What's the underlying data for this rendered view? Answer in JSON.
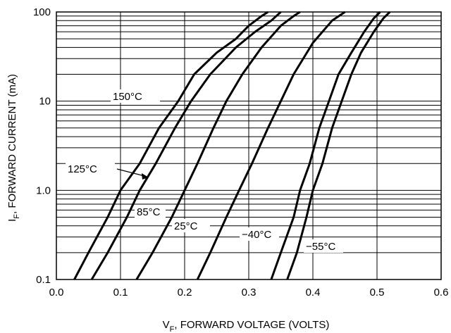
{
  "chart_data": {
    "type": "line",
    "xlabel_main": "V",
    "xlabel_sub": "F",
    "xlabel_rest": ", FORWARD VOLTAGE (VOLTS)",
    "ylabel_main": "I",
    "ylabel_sub": "F",
    "ylabel_rest": ", FORWARD CURRENT (mA)",
    "xlim": [
      0.0,
      0.6
    ],
    "ylim": [
      0.1,
      100
    ],
    "yscale": "log",
    "x_ticks": [
      {
        "v": 0.0,
        "label": "0.0"
      },
      {
        "v": 0.1,
        "label": "0.1"
      },
      {
        "v": 0.2,
        "label": "0.2"
      },
      {
        "v": 0.3,
        "label": "0.3"
      },
      {
        "v": 0.4,
        "label": "0.4"
      },
      {
        "v": 0.5,
        "label": "0.5"
      },
      {
        "v": 0.6,
        "label": "0.6"
      }
    ],
    "y_ticks": [
      {
        "v": 0.1,
        "label": "0.1"
      },
      {
        "v": 1.0,
        "label": "1.0"
      },
      {
        "v": 10,
        "label": "10"
      },
      {
        "v": 100,
        "label": "100"
      }
    ],
    "grid": true,
    "series": [
      {
        "name": "150°C",
        "points": [
          [
            0.028,
            0.1
          ],
          [
            0.05,
            0.2
          ],
          [
            0.08,
            0.5
          ],
          [
            0.1,
            1.0
          ],
          [
            0.13,
            2.0
          ],
          [
            0.16,
            5.0
          ],
          [
            0.19,
            10
          ],
          [
            0.215,
            20
          ],
          [
            0.25,
            35
          ],
          [
            0.28,
            50
          ],
          [
            0.3,
            70
          ],
          [
            0.32,
            90
          ],
          [
            0.33,
            100
          ]
        ]
      },
      {
        "name": "125°C",
        "points": [
          [
            0.055,
            0.1
          ],
          [
            0.08,
            0.2
          ],
          [
            0.11,
            0.5
          ],
          [
            0.13,
            1.0
          ],
          [
            0.155,
            2.0
          ],
          [
            0.185,
            5.0
          ],
          [
            0.21,
            10
          ],
          [
            0.24,
            20
          ],
          [
            0.28,
            40
          ],
          [
            0.31,
            60
          ],
          [
            0.335,
            80
          ],
          [
            0.35,
            100
          ]
        ]
      },
      {
        "name": "85°C",
        "points": [
          [
            0.125,
            0.1
          ],
          [
            0.15,
            0.2
          ],
          [
            0.18,
            0.5
          ],
          [
            0.2,
            1.0
          ],
          [
            0.22,
            2.0
          ],
          [
            0.245,
            5.0
          ],
          [
            0.265,
            10
          ],
          [
            0.29,
            20
          ],
          [
            0.32,
            40
          ],
          [
            0.35,
            70
          ],
          [
            0.37,
            90
          ],
          [
            0.38,
            100
          ]
        ]
      },
      {
        "name": "25°C",
        "points": [
          [
            0.22,
            0.1
          ],
          [
            0.24,
            0.2
          ],
          [
            0.265,
            0.5
          ],
          [
            0.285,
            1.0
          ],
          [
            0.305,
            2.0
          ],
          [
            0.33,
            5.0
          ],
          [
            0.35,
            10
          ],
          [
            0.37,
            20
          ],
          [
            0.4,
            45
          ],
          [
            0.43,
            80
          ],
          [
            0.45,
            100
          ]
        ]
      },
      {
        "name": "−40°C",
        "points": [
          [
            0.335,
            0.1
          ],
          [
            0.35,
            0.2
          ],
          [
            0.37,
            0.5
          ],
          [
            0.38,
            1.0
          ],
          [
            0.395,
            2.0
          ],
          [
            0.41,
            5.0
          ],
          [
            0.425,
            10
          ],
          [
            0.44,
            20
          ],
          [
            0.46,
            35
          ],
          [
            0.48,
            60
          ],
          [
            0.495,
            85
          ],
          [
            0.505,
            100
          ]
        ]
      },
      {
        "name": "−55°C",
        "points": [
          [
            0.36,
            0.1
          ],
          [
            0.375,
            0.2
          ],
          [
            0.39,
            0.5
          ],
          [
            0.4,
            1.0
          ],
          [
            0.415,
            2.0
          ],
          [
            0.43,
            5.0
          ],
          [
            0.445,
            10
          ],
          [
            0.46,
            20
          ],
          [
            0.475,
            35
          ],
          [
            0.495,
            60
          ],
          [
            0.51,
            85
          ],
          [
            0.52,
            100
          ]
        ]
      }
    ],
    "annotations": [
      {
        "label": "150°C"
      },
      {
        "label": "125°C"
      },
      {
        "label": "85°C"
      },
      {
        "label": "25°C"
      },
      {
        "label": "−40°C"
      },
      {
        "label": "−55°C"
      }
    ]
  }
}
